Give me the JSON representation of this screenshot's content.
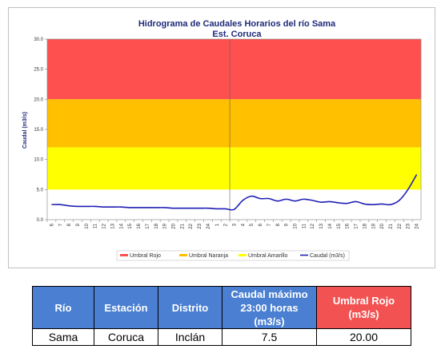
{
  "chart_data": {
    "type": "line",
    "title": "Hidrograma de Caudales Horarios del río Sama",
    "subtitle": "Est. Coruca",
    "ylabel": "Caudal (m3/s)",
    "xlabel": "",
    "ylim": [
      0,
      30
    ],
    "yticks": [
      "0.0",
      "5.0",
      "10.0",
      "15.0",
      "20.0",
      "25.0",
      "30.0"
    ],
    "xticks": [
      "6",
      "7",
      "8",
      "9",
      "10",
      "11",
      "12",
      "13",
      "14",
      "15",
      "16",
      "17",
      "18",
      "19",
      "20",
      "21",
      "22",
      "23",
      "24",
      "1",
      "2",
      "3",
      "4",
      "5",
      "6",
      "7",
      "8",
      "9",
      "10",
      "11",
      "12",
      "13",
      "14",
      "15",
      "16",
      "17",
      "18",
      "19",
      "20",
      "21",
      "22",
      "23",
      "24"
    ],
    "day_divider_index": 21,
    "bands": [
      {
        "name": "Umbral Rojo",
        "from": 20,
        "to": 30,
        "color": "#ff5050"
      },
      {
        "name": "Umbral Naranja",
        "from": 12,
        "to": 20,
        "color": "#ffc000"
      },
      {
        "name": "Umbral Amarillo",
        "from": 5,
        "to": 12,
        "color": "#ffff00"
      }
    ],
    "series": [
      {
        "name": "Caudal (m3/s)",
        "color": "#1f1fb4",
        "values": [
          2.5,
          2.5,
          2.3,
          2.2,
          2.2,
          2.2,
          2.1,
          2.1,
          2.1,
          2.0,
          2.0,
          2.0,
          2.0,
          2.0,
          1.9,
          1.9,
          1.9,
          1.9,
          1.9,
          1.8,
          1.8,
          1.7,
          3.2,
          3.9,
          3.5,
          3.5,
          3.1,
          3.4,
          3.1,
          3.4,
          3.2,
          2.9,
          3.0,
          2.8,
          2.7,
          3.0,
          2.6,
          2.5,
          2.6,
          2.5,
          3.2,
          5.0,
          7.5
        ]
      }
    ],
    "legend_position": "bottom"
  },
  "table": {
    "headers": [
      "Río",
      "Estación",
      "Distrito",
      "Caudal máximo 23:00 horas (m3/s)",
      "Umbral  Rojo (m3/s)"
    ],
    "row": [
      "Sama",
      "Coruca",
      "Inclán",
      "7.5",
      "20.00"
    ]
  }
}
